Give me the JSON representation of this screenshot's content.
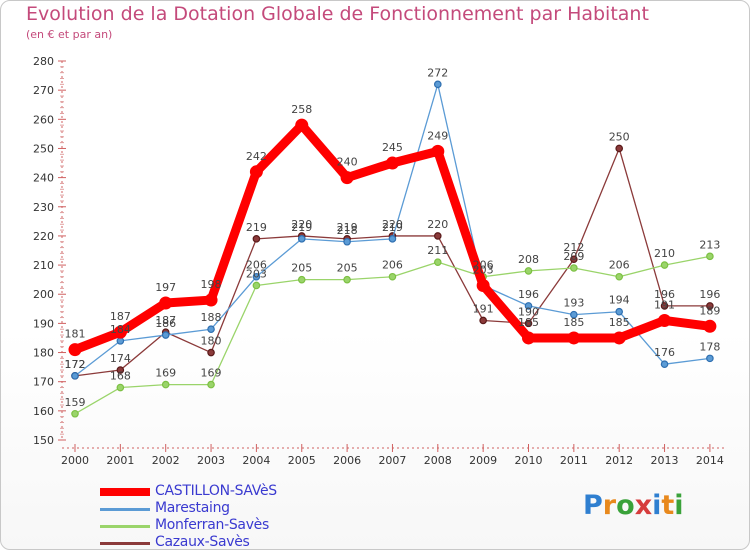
{
  "title": "Evolution de la Dotation Globale de Fonctionnement par Habitant",
  "subtitle": "(en € et par an)",
  "logo": {
    "text": "Proxiti",
    "letter_colors": [
      "#2f7fd0",
      "#e8891d",
      "#3aa23a",
      "#d63c3c",
      "#2f7fd0",
      "#e8891d",
      "#3aa23a"
    ]
  },
  "chart_data": {
    "type": "line",
    "title": "Evolution de la Dotation Globale de Fonctionnement par Habitant",
    "subtitle": "(en € et par an)",
    "x": [
      "2000",
      "2001",
      "2002",
      "2003",
      "2004",
      "2005",
      "2006",
      "2007",
      "2008",
      "2009",
      "2010",
      "2011",
      "2012",
      "2013",
      "2014"
    ],
    "ylim": [
      150,
      280
    ],
    "yticks": [
      150,
      160,
      170,
      180,
      190,
      200,
      210,
      220,
      230,
      240,
      250,
      260,
      270,
      280
    ],
    "grid": false,
    "legend_position": "bottom-left",
    "series": [
      {
        "name": "CASTILLON-SAVèS",
        "color": "#ff0000",
        "emphasis": true,
        "values": [
          181,
          187,
          197,
          198,
          242,
          258,
          240,
          245,
          249,
          203,
          185,
          185,
          185,
          191,
          189
        ],
        "labels": [
          "181",
          "187",
          "197",
          "198",
          "242",
          "258",
          "240",
          "245",
          "249",
          "203",
          "185",
          "185",
          "185",
          "191",
          "189"
        ]
      },
      {
        "name": "Marestaing",
        "color": "#5b9bd5",
        "marker": "#2f6fb0",
        "emphasis": false,
        "values": [
          172,
          184,
          186,
          188,
          206,
          219,
          218,
          219,
          272,
          203,
          196,
          193,
          194,
          176,
          178
        ],
        "labels": [
          "172",
          "184",
          "186",
          "188",
          "206",
          "219",
          "218",
          "219",
          "272",
          "",
          "196",
          "193",
          "194",
          "176",
          "178"
        ]
      },
      {
        "name": "Monferran-Savès",
        "color": "#9ad46a",
        "marker": "#7cc043",
        "emphasis": false,
        "values": [
          159,
          168,
          169,
          169,
          203,
          205,
          205,
          206,
          211,
          206,
          208,
          209,
          206,
          210,
          213
        ],
        "labels": [
          "159",
          "168",
          "169",
          "169",
          "203",
          "205",
          "205",
          "206",
          "211",
          "206",
          "208",
          "209",
          "206",
          "210",
          "213"
        ]
      },
      {
        "name": "Cazaux-Savès",
        "color": "#8b3a3a",
        "marker": "#5a1a1a",
        "emphasis": false,
        "values": [
          172,
          174,
          187,
          180,
          219,
          220,
          219,
          220,
          220,
          191,
          190,
          212,
          250,
          196,
          196
        ],
        "labels": [
          "172",
          "174",
          "187",
          "180",
          "219",
          "220",
          "219",
          "220",
          "220",
          "191",
          "190",
          "212",
          "250",
          "196",
          "196"
        ]
      }
    ]
  }
}
